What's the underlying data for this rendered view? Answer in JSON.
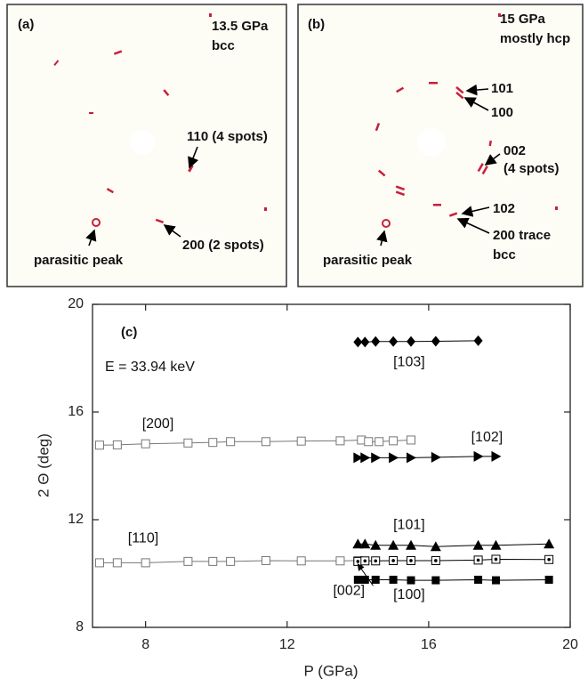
{
  "panels": [
    {
      "label": "(a)",
      "pressure": "13.5 GPa",
      "phase": "bcc",
      "notes": [
        "110 (4 spots)",
        "200 (2 spots)",
        "parasitic peak"
      ]
    },
    {
      "label": "(b)",
      "pressure": "15 GPa",
      "phase": "mostly hcp",
      "notes": [
        "101",
        "100",
        "002",
        "(4 spots)",
        "102",
        "200 trace",
        "bcc",
        "parasitic peak"
      ]
    }
  ],
  "chart_data": {
    "type": "line",
    "panel_label": "(c)",
    "annotation": "E = 33.94 keV",
    "x_label": "P (GPa)",
    "y_label": "2 Θ (deg)",
    "xlim": [
      6.5,
      20
    ],
    "ylim": [
      8,
      20
    ],
    "xticks": [
      8,
      12,
      16,
      20
    ],
    "yticks": [
      8,
      12,
      16,
      20
    ],
    "series": [
      {
        "name": "[200]",
        "marker": "open-square",
        "color": "#777777",
        "x": [
          6.7,
          7.2,
          8.0,
          9.2,
          9.9,
          10.4,
          11.4,
          12.4,
          13.5,
          14.1,
          14.3,
          14.6,
          15.0,
          15.5
        ],
        "values": [
          14.77,
          14.78,
          14.82,
          14.85,
          14.87,
          14.9,
          14.9,
          14.92,
          14.93,
          14.96,
          14.9,
          14.9,
          14.93,
          14.96
        ]
      },
      {
        "name": "[110]",
        "marker": "open-square",
        "color": "#777777",
        "x": [
          6.7,
          7.2,
          8.0,
          9.2,
          9.9,
          10.4,
          11.4,
          12.4,
          13.5,
          14.0
        ],
        "values": [
          10.4,
          10.4,
          10.4,
          10.45,
          10.45,
          10.45,
          10.48,
          10.47,
          10.47,
          10.48
        ]
      },
      {
        "name": "[103]",
        "marker": "diamond",
        "color": "#000000",
        "x": [
          14.0,
          14.2,
          14.5,
          15.0,
          15.5,
          16.2,
          17.4
        ],
        "values": [
          18.6,
          18.6,
          18.62,
          18.62,
          18.62,
          18.63,
          18.65
        ]
      },
      {
        "name": "[102]",
        "marker": "triangle-right",
        "color": "#000000",
        "x": [
          14.0,
          14.2,
          14.5,
          15.0,
          15.5,
          16.2,
          17.4,
          17.9
        ],
        "values": [
          14.3,
          14.3,
          14.3,
          14.3,
          14.3,
          14.32,
          14.35,
          14.35
        ]
      },
      {
        "name": "[101]",
        "marker": "triangle-up",
        "color": "#000000",
        "x": [
          14.0,
          14.2,
          14.5,
          15.0,
          15.5,
          16.2,
          17.4,
          17.9,
          19.4
        ],
        "values": [
          11.1,
          11.1,
          11.05,
          11.05,
          11.05,
          11.0,
          11.05,
          11.05,
          11.1
        ]
      },
      {
        "name": "[002]",
        "marker": "circle-dot",
        "color": "#000000",
        "x": [
          14.0,
          14.2,
          14.5,
          15.0,
          15.5,
          16.2,
          17.4,
          17.9,
          19.4
        ],
        "values": [
          10.45,
          10.47,
          10.47,
          10.48,
          10.48,
          10.48,
          10.5,
          10.53,
          10.52
        ]
      },
      {
        "name": "[100]",
        "marker": "filled-square",
        "color": "#000000",
        "x": [
          14.0,
          14.2,
          14.5,
          15.0,
          15.5,
          16.2,
          17.4,
          17.9,
          19.4
        ],
        "values": [
          9.77,
          9.77,
          9.77,
          9.77,
          9.75,
          9.75,
          9.77,
          9.75,
          9.77
        ]
      }
    ]
  }
}
